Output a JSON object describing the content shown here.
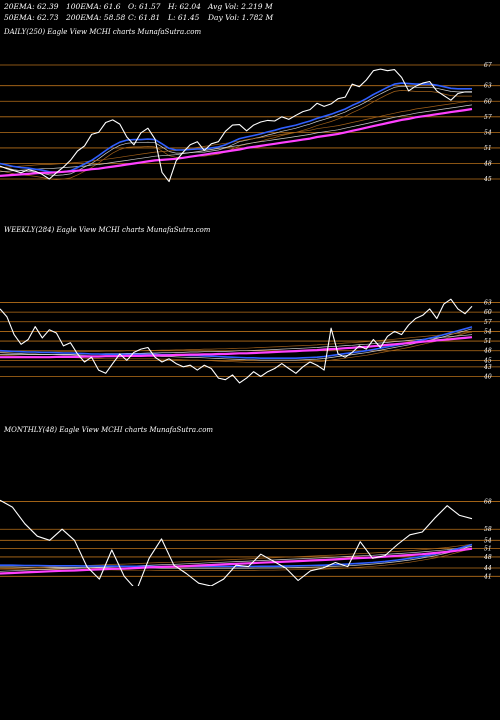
{
  "header": {
    "row1": [
      "20EMA: 62.39",
      "100EMA: 61.6",
      "O: 61.57",
      "H: 62.04",
      "Avg Vol: 2.219 M"
    ],
    "row2": [
      "50EMA: 62.73",
      "200EMA: 58.58",
      "C: 61.81",
      "L: 61.45",
      "Day Vol: 1.782  M"
    ]
  },
  "colors": {
    "background": "#000000",
    "gridline": "#b8701a",
    "price": "#ffffff",
    "ema_fast": "#2f5fff",
    "ema_slow": "#ff40ff",
    "ema_mid": "#cccccc",
    "ema_brown": "#a0601a"
  },
  "chart_data": [
    {
      "type": "line",
      "title": "DAILY(250) Eagle  View  MCHI charts MunafaSutra.com",
      "y_ticks": [
        67,
        63,
        60,
        57,
        54,
        51,
        48,
        45
      ],
      "ylim": [
        42.5,
        69.5
      ],
      "series": [
        {
          "role": "price",
          "values": [
            47.5,
            47.0,
            46.6,
            46.2,
            46.8,
            46.5,
            45.9,
            45.0,
            46.2,
            47.3,
            48.6,
            50.4,
            51.4,
            53.6,
            54.0,
            55.9,
            56.4,
            55.6,
            53.1,
            51.6,
            53.9,
            54.8,
            52.7,
            46.3,
            44.5,
            48.5,
            50.2,
            51.6,
            52.2,
            50.5,
            51.8,
            52.2,
            54.2,
            55.4,
            55.5,
            54.3,
            55.4,
            56.0,
            56.3,
            56.2,
            57.0,
            56.5,
            57.3,
            58.0,
            58.4,
            59.6,
            59.0,
            59.5,
            60.5,
            60.8,
            63.3,
            62.8,
            64.1,
            65.9,
            66.2,
            65.9,
            66.1,
            64.6,
            62.0,
            62.9,
            63.5,
            63.8,
            62.0,
            61.1,
            60.2,
            61.5,
            61.8,
            61.8
          ]
        },
        {
          "role": "ema20",
          "values": [
            48.0,
            47.7,
            47.4,
            47.2,
            47.1,
            46.9,
            46.7,
            46.4,
            46.3,
            46.4,
            46.6,
            47.2,
            47.9,
            48.6,
            49.5,
            50.5,
            51.4,
            52.1,
            52.5,
            52.6,
            52.6,
            52.7,
            52.6,
            51.8,
            50.9,
            50.6,
            50.6,
            50.7,
            50.8,
            50.8,
            51.0,
            51.2,
            51.6,
            52.2,
            52.8,
            53.1,
            53.4,
            53.7,
            54.1,
            54.4,
            54.8,
            55.1,
            55.4,
            55.8,
            56.2,
            56.7,
            57.1,
            57.5,
            58.0,
            58.5,
            59.2,
            59.8,
            60.5,
            61.3,
            62.0,
            62.7,
            63.3,
            63.5,
            63.4,
            63.3,
            63.3,
            63.3,
            63.1,
            62.8,
            62.5,
            62.4,
            62.4,
            62.4
          ]
        },
        {
          "role": "ema200",
          "values": [
            45.6,
            45.7,
            45.8,
            45.9,
            46.0,
            46.1,
            46.2,
            46.2,
            46.3,
            46.4,
            46.5,
            46.6,
            46.7,
            46.9,
            47.0,
            47.2,
            47.4,
            47.6,
            47.8,
            48.0,
            48.2,
            48.4,
            48.6,
            48.7,
            48.8,
            48.9,
            49.1,
            49.3,
            49.5,
            49.7,
            49.9,
            50.1,
            50.3,
            50.5,
            50.7,
            51.0,
            51.2,
            51.4,
            51.6,
            51.8,
            52.0,
            52.2,
            52.4,
            52.6,
            52.8,
            53.1,
            53.3,
            53.5,
            53.7,
            54.0,
            54.3,
            54.6,
            54.9,
            55.2,
            55.5,
            55.8,
            56.1,
            56.4,
            56.6,
            56.9,
            57.1,
            57.3,
            57.5,
            57.7,
            57.9,
            58.1,
            58.3,
            58.5
          ]
        }
      ]
    },
    {
      "type": "line",
      "title": "WEEKLY(284) Eagle  View  MCHI charts MunafaSutra.com",
      "y_ticks": [
        63,
        60,
        57,
        54,
        51,
        48,
        45,
        43,
        40
      ],
      "ylim": [
        35.5,
        65.0
      ],
      "series": [
        {
          "role": "price",
          "values": [
            61.0,
            58.5,
            53.0,
            50.0,
            51.5,
            55.5,
            52.0,
            54.5,
            53.5,
            49.5,
            50.5,
            47.0,
            44.5,
            46.0,
            42.0,
            41.0,
            44.0,
            47.0,
            45.0,
            47.5,
            48.5,
            49.0,
            46.0,
            44.5,
            45.5,
            44.0,
            43.0,
            43.5,
            42.0,
            43.5,
            42.5,
            39.5,
            39.0,
            40.5,
            38.0,
            39.5,
            41.5,
            40.0,
            41.5,
            42.5,
            44.0,
            42.5,
            41.0,
            43.0,
            44.5,
            43.5,
            42.0,
            55.0,
            47.0,
            46.0,
            47.5,
            49.5,
            48.5,
            51.5,
            49.0,
            52.5,
            54.0,
            53.0,
            56.0,
            58.0,
            59.0,
            61.0,
            58.0,
            62.5,
            64.0,
            61.0,
            59.5,
            61.8
          ]
        },
        {
          "role": "ema50",
          "values": [
            48.0,
            47.9,
            47.8,
            47.7,
            47.6,
            47.6,
            47.5,
            47.5,
            47.4,
            47.3,
            47.3,
            47.2,
            47.1,
            47.0,
            47.0,
            46.9,
            46.9,
            46.9,
            46.9,
            46.9,
            46.9,
            46.9,
            46.9,
            46.8,
            46.8,
            46.7,
            46.6,
            46.5,
            46.5,
            46.4,
            46.3,
            46.2,
            46.1,
            46.0,
            45.9,
            45.8,
            45.8,
            45.7,
            45.7,
            45.7,
            45.7,
            45.7,
            45.7,
            45.8,
            45.9,
            46.0,
            46.2,
            46.5,
            46.8,
            47.1,
            47.4,
            47.7,
            48.0,
            48.4,
            48.8,
            49.2,
            49.6,
            50.0,
            50.4,
            50.9,
            51.4,
            51.9,
            52.4,
            53.0,
            53.6,
            54.2,
            54.8,
            55.4
          ]
        },
        {
          "role": "ema200",
          "values": [
            46.0,
            46.0,
            46.0,
            46.0,
            46.0,
            46.0,
            46.0,
            46.0,
            46.1,
            46.1,
            46.1,
            46.1,
            46.2,
            46.2,
            46.2,
            46.3,
            46.3,
            46.3,
            46.4,
            46.4,
            46.4,
            46.5,
            46.5,
            46.6,
            46.6,
            46.7,
            46.7,
            46.8,
            46.8,
            46.9,
            46.9,
            47.0,
            47.0,
            47.1,
            47.2,
            47.2,
            47.3,
            47.4,
            47.5,
            47.6,
            47.7,
            47.8,
            47.9,
            48.0,
            48.1,
            48.2,
            48.4,
            48.5,
            48.6,
            48.8,
            48.9,
            49.1,
            49.2,
            49.4,
            49.6,
            49.8,
            50.0,
            50.2,
            50.4,
            50.6,
            50.8,
            51.0,
            51.2,
            51.4,
            51.6,
            51.8,
            52.0,
            52.2
          ]
        }
      ]
    },
    {
      "type": "line",
      "title": "MONTHLY(48) Eagle  View  MCHI charts MunafaSutra.com",
      "y_ticks": [
        68,
        58,
        54,
        51,
        48,
        44,
        41
      ],
      "ylim": [
        37.5,
        70.0
      ],
      "series": [
        {
          "role": "price",
          "values": [
            68.5,
            66.0,
            60.0,
            55.5,
            54.0,
            58.0,
            54.0,
            44.5,
            40.0,
            50.5,
            41.0,
            36.0,
            47.5,
            54.5,
            45.0,
            42.0,
            38.5,
            37.5,
            40.0,
            45.0,
            44.5,
            49.0,
            46.5,
            44.0,
            39.5,
            43.0,
            44.0,
            46.0,
            44.5,
            53.5,
            47.5,
            48.5,
            52.5,
            56.0,
            57.0,
            62.0,
            66.5,
            63.0,
            61.81
          ]
        },
        {
          "role": "ema_fast",
          "values": [
            45.0,
            45.0,
            44.9,
            44.9,
            44.8,
            44.8,
            44.8,
            44.7,
            44.7,
            44.7,
            44.6,
            44.6,
            44.6,
            44.5,
            44.5,
            44.5,
            44.5,
            44.5,
            44.5,
            44.5,
            44.5,
            44.6,
            44.6,
            44.7,
            44.8,
            44.9,
            45.0,
            45.2,
            45.4,
            45.7,
            46.0,
            46.4,
            46.9,
            47.5,
            48.2,
            49.0,
            50.0,
            51.2,
            52.5
          ]
        },
        {
          "role": "ema_slow",
          "values": [
            42.0,
            42.2,
            42.4,
            42.6,
            42.8,
            43.0,
            43.1,
            43.3,
            43.5,
            43.7,
            43.8,
            44.0,
            44.2,
            44.4,
            44.5,
            44.7,
            44.9,
            45.1,
            45.3,
            45.5,
            45.7,
            45.9,
            46.1,
            46.3,
            46.5,
            46.7,
            46.9,
            47.1,
            47.4,
            47.6,
            47.8,
            48.1,
            48.4,
            48.7,
            49.0,
            49.4,
            49.8,
            50.4,
            51.0
          ]
        }
      ]
    }
  ]
}
